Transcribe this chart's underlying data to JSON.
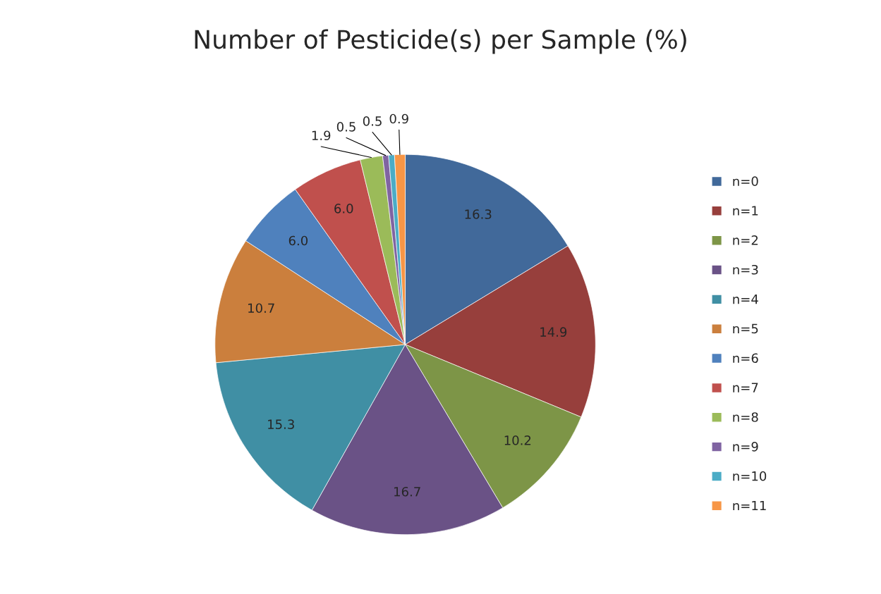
{
  "chart_data": {
    "type": "pie",
    "title": "Number of Pesticide(s) per Sample (%)",
    "categories": [
      "n=0",
      "n=1",
      "n=2",
      "n=3",
      "n=4",
      "n=5",
      "n=6",
      "n=7",
      "n=8",
      "n=9",
      "n=10",
      "n=11"
    ],
    "values": [
      16.3,
      14.9,
      10.2,
      16.7,
      15.3,
      10.7,
      6.0,
      6.0,
      1.9,
      0.5,
      0.5,
      0.9
    ],
    "colors": [
      "#41699a",
      "#973f3c",
      "#7d9547",
      "#6a5286",
      "#408fa4",
      "#cb7f3d",
      "#4f81bd",
      "#c0504d",
      "#9bbb59",
      "#8064a2",
      "#4bacc6",
      "#f79646"
    ],
    "value_labels": [
      "16.3",
      "14.9",
      "10.2",
      "16.7",
      "15.3",
      "10.7",
      "6.0",
      "6.0",
      "1.9",
      "0.5",
      "0.5",
      "0.9"
    ],
    "legend": "right"
  }
}
